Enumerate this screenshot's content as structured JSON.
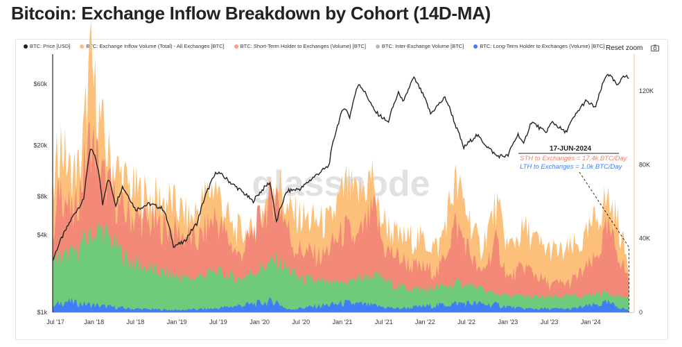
{
  "title": "Bitcoin: Exchange Inflow Breakdown by Cohort (14D-MA)",
  "legend": [
    {
      "label": "BTC: Price [USD]",
      "color": "#222222"
    },
    {
      "label": "BTC: Exchange Inflow Volume (Total) - All Exchanges [BTC]",
      "color": "#fcc07a"
    },
    {
      "label": "BTC: Short-Term Holder to Exchanges (Volume) [BTC]",
      "color": "#f7a17b"
    },
    {
      "label": "BTC: Inter-Exchange Volume [BTC]",
      "color": "#b9b9b9"
    },
    {
      "label": "BTC: Long-Term Holder to Exchanges (Volume) [BTC]",
      "color": "#3f7ef7"
    }
  ],
  "toolbar": {
    "reset_label": "Reset zoom",
    "camera_icon": "camera-icon"
  },
  "watermark": "glassnode",
  "annotation": {
    "date": "17-JUN-2024",
    "sth": "STH to Exchanges = 17.4k BTC/Day",
    "lth": "LTH to Exchanges = 1.0k BTC/Day"
  },
  "chart_data": {
    "type": "area",
    "x_ticks": [
      "Jul '17",
      "Jan '18",
      "Jul '18",
      "Jan '19",
      "Jul '19",
      "Jan '20",
      "Jul '20",
      "Jan '21",
      "Jul '21",
      "Jan '22",
      "Jul '22",
      "Jan '23",
      "Jul '23",
      "Jan '24"
    ],
    "y_left_ticks": [
      "$1k",
      "$4k",
      "$8k",
      "$20k",
      "$60k"
    ],
    "y_left_values": [
      1000,
      4000,
      8000,
      20000,
      60000
    ],
    "y_left_scale": "log",
    "y_right_ticks": [
      "0",
      "40K",
      "80K",
      "120K"
    ],
    "y_right_values": [
      0,
      40000,
      80000,
      120000
    ],
    "y_right_range": [
      0,
      140000
    ],
    "x_range": [
      "2017-07-01",
      "2024-07-01"
    ],
    "colors": {
      "price": "#222222",
      "total": "#fcc07a",
      "sth": "#f38a78",
      "inter": "#6fca7c",
      "lth": "#3f7ef7"
    },
    "price": [
      [
        "2017-07-01",
        2500
      ],
      [
        "2017-09-01",
        4500
      ],
      [
        "2017-11-15",
        7500
      ],
      [
        "2017-12-17",
        19000
      ],
      [
        "2018-01-10",
        15000
      ],
      [
        "2018-02-06",
        7000
      ],
      [
        "2018-03-05",
        11000
      ],
      [
        "2018-04-05",
        6800
      ],
      [
        "2018-05-05",
        9500
      ],
      [
        "2018-07-01",
        6300
      ],
      [
        "2018-09-01",
        7000
      ],
      [
        "2018-11-01",
        6400
      ],
      [
        "2018-12-15",
        3300
      ],
      [
        "2019-02-01",
        3500
      ],
      [
        "2019-04-01",
        5000
      ],
      [
        "2019-06-26",
        12500
      ],
      [
        "2019-09-01",
        10000
      ],
      [
        "2019-12-01",
        7300
      ],
      [
        "2020-02-14",
        10300
      ],
      [
        "2020-03-13",
        4900
      ],
      [
        "2020-05-01",
        8800
      ],
      [
        "2020-07-01",
        9200
      ],
      [
        "2020-09-01",
        11500
      ],
      [
        "2020-11-01",
        13800
      ],
      [
        "2021-01-08",
        40000
      ],
      [
        "2021-02-01",
        33000
      ],
      [
        "2021-03-13",
        61000
      ],
      [
        "2021-05-20",
        37000
      ],
      [
        "2021-07-20",
        30000
      ],
      [
        "2021-09-07",
        52000
      ],
      [
        "2021-09-25",
        42000
      ],
      [
        "2021-11-10",
        67000
      ],
      [
        "2022-01-24",
        35000
      ],
      [
        "2022-03-29",
        47000
      ],
      [
        "2022-05-12",
        29000
      ],
      [
        "2022-06-18",
        19000
      ],
      [
        "2022-08-15",
        24000
      ],
      [
        "2022-10-01",
        19500
      ],
      [
        "2022-11-10",
        16500
      ],
      [
        "2022-12-31",
        16500
      ],
      [
        "2023-02-15",
        24500
      ],
      [
        "2023-03-10",
        20000
      ],
      [
        "2023-04-14",
        30500
      ],
      [
        "2023-06-15",
        25000
      ],
      [
        "2023-07-15",
        30300
      ],
      [
        "2023-09-11",
        25000
      ],
      [
        "2023-10-24",
        34000
      ],
      [
        "2023-12-08",
        44000
      ],
      [
        "2024-01-23",
        39500
      ],
      [
        "2024-03-14",
        73000
      ],
      [
        "2024-05-01",
        57000
      ],
      [
        "2024-05-21",
        71000
      ],
      [
        "2024-06-17",
        66500
      ]
    ],
    "total": [
      [
        "2017-07-01",
        60000
      ],
      [
        "2017-08-01",
        95000
      ],
      [
        "2017-09-15",
        75000
      ],
      [
        "2017-11-01",
        78000
      ],
      [
        "2017-12-15",
        135000
      ],
      [
        "2018-01-15",
        110000
      ],
      [
        "2018-03-01",
        85000
      ],
      [
        "2018-06-01",
        68000
      ],
      [
        "2018-09-01",
        62000
      ],
      [
        "2018-12-01",
        60000
      ],
      [
        "2019-03-01",
        50000
      ],
      [
        "2019-06-15",
        70000
      ],
      [
        "2019-09-01",
        45000
      ],
      [
        "2019-12-01",
        42000
      ],
      [
        "2020-03-13",
        75000
      ],
      [
        "2020-05-01",
        55000
      ],
      [
        "2020-08-01",
        50000
      ],
      [
        "2020-11-01",
        48000
      ],
      [
        "2021-01-15",
        68000
      ],
      [
        "2021-03-01",
        62000
      ],
      [
        "2021-05-20",
        75000
      ],
      [
        "2021-06-01",
        55000
      ],
      [
        "2021-09-01",
        40000
      ],
      [
        "2021-12-01",
        40000
      ],
      [
        "2022-03-01",
        35000
      ],
      [
        "2022-05-12",
        70000
      ],
      [
        "2022-06-18",
        60000
      ],
      [
        "2022-09-01",
        34000
      ],
      [
        "2022-11-10",
        58000
      ],
      [
        "2023-01-01",
        35000
      ],
      [
        "2023-03-15",
        45000
      ],
      [
        "2023-06-01",
        35000
      ],
      [
        "2023-09-01",
        32000
      ],
      [
        "2023-12-01",
        38000
      ],
      [
        "2024-01-20",
        50000
      ],
      [
        "2024-03-15",
        62000
      ],
      [
        "2024-05-01",
        48000
      ],
      [
        "2024-06-17",
        24000
      ]
    ],
    "sth": [
      [
        "2017-07-01",
        35000
      ],
      [
        "2017-08-01",
        70000
      ],
      [
        "2017-10-01",
        50000
      ],
      [
        "2017-12-15",
        95000
      ],
      [
        "2018-02-01",
        75000
      ],
      [
        "2018-05-01",
        55000
      ],
      [
        "2018-09-01",
        48000
      ],
      [
        "2018-12-01",
        45000
      ],
      [
        "2019-04-01",
        38000
      ],
      [
        "2019-06-15",
        52000
      ],
      [
        "2019-10-01",
        30000
      ],
      [
        "2020-03-13",
        65000
      ],
      [
        "2020-06-01",
        35000
      ],
      [
        "2020-10-01",
        30000
      ],
      [
        "2021-01-15",
        45000
      ],
      [
        "2021-03-01",
        38000
      ],
      [
        "2021-05-20",
        55000
      ],
      [
        "2021-07-01",
        35000
      ],
      [
        "2021-11-01",
        25000
      ],
      [
        "2022-03-01",
        22000
      ],
      [
        "2022-05-12",
        48000
      ],
      [
        "2022-06-18",
        40000
      ],
      [
        "2022-09-01",
        20000
      ],
      [
        "2022-11-10",
        38000
      ],
      [
        "2023-01-01",
        18000
      ],
      [
        "2023-03-15",
        25000
      ],
      [
        "2023-07-01",
        15000
      ],
      [
        "2023-10-01",
        16000
      ],
      [
        "2024-01-20",
        28000
      ],
      [
        "2024-03-15",
        45000
      ],
      [
        "2024-05-01",
        32000
      ],
      [
        "2024-06-17",
        17400
      ]
    ],
    "inter": [
      [
        "2017-07-01",
        28000
      ],
      [
        "2017-10-01",
        32000
      ],
      [
        "2017-12-15",
        42000
      ],
      [
        "2018-02-01",
        45000
      ],
      [
        "2018-06-01",
        28000
      ],
      [
        "2018-10-01",
        22000
      ],
      [
        "2019-03-01",
        18000
      ],
      [
        "2019-06-15",
        22000
      ],
      [
        "2019-10-01",
        18000
      ],
      [
        "2020-03-13",
        28000
      ],
      [
        "2020-07-01",
        18000
      ],
      [
        "2020-12-01",
        15000
      ],
      [
        "2021-03-01",
        18000
      ],
      [
        "2021-05-20",
        20000
      ],
      [
        "2021-09-01",
        14000
      ],
      [
        "2022-01-01",
        12000
      ],
      [
        "2022-06-18",
        16000
      ],
      [
        "2022-10-01",
        11000
      ],
      [
        "2023-01-01",
        9000
      ],
      [
        "2023-06-01",
        8000
      ],
      [
        "2023-12-01",
        9000
      ],
      [
        "2024-03-15",
        11000
      ],
      [
        "2024-06-17",
        7000
      ]
    ],
    "lth": [
      [
        "2017-07-01",
        3000
      ],
      [
        "2017-08-20",
        6000
      ],
      [
        "2017-12-15",
        4000
      ],
      [
        "2018-06-01",
        2000
      ],
      [
        "2019-01-01",
        1200
      ],
      [
        "2019-06-15",
        2000
      ],
      [
        "2020-03-13",
        6000
      ],
      [
        "2020-05-01",
        1500
      ],
      [
        "2021-01-15",
        5000
      ],
      [
        "2021-04-15",
        4000
      ],
      [
        "2021-09-01",
        2000
      ],
      [
        "2022-06-18",
        5000
      ],
      [
        "2022-11-10",
        4000
      ],
      [
        "2023-03-01",
        2000
      ],
      [
        "2023-10-01",
        1800
      ],
      [
        "2024-03-15",
        5000
      ],
      [
        "2024-06-17",
        1000
      ]
    ]
  }
}
